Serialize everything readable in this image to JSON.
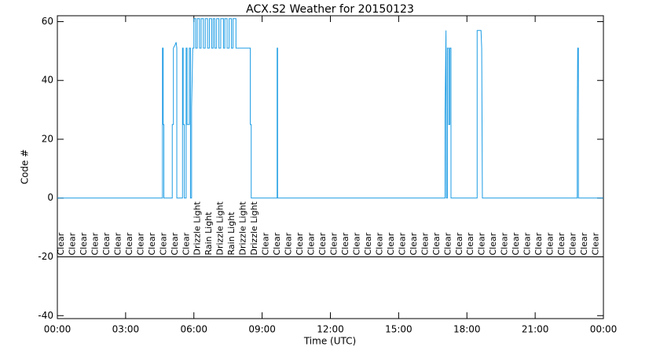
{
  "chart_data": {
    "type": "line",
    "title": "ACX.S2 Weather for 20150123",
    "x_label": "Time (UTC)",
    "y_label": "Code #",
    "xlim": [
      0,
      24
    ],
    "xticks": [
      {
        "value": 0,
        "label": "00:00"
      },
      {
        "value": 3,
        "label": "03:00"
      },
      {
        "value": 6,
        "label": "06:00"
      },
      {
        "value": 9,
        "label": "09:00"
      },
      {
        "value": 12,
        "label": "12:00"
      },
      {
        "value": 15,
        "label": "15:00"
      },
      {
        "value": 18,
        "label": "18:00"
      },
      {
        "value": 21,
        "label": "21:00"
      },
      {
        "value": 24,
        "label": "00:00"
      }
    ],
    "ylim": [
      -41,
      62
    ],
    "yticks": [
      -40,
      -20,
      0,
      20,
      40,
      60
    ],
    "hline": -20,
    "series": [
      {
        "color": "#1c9ce4",
        "x": [
          0,
          4.62,
          4.62,
          4.65,
          4.65,
          4.68,
          4.68,
          5.05,
          5.05,
          5.1,
          5.1,
          5.17,
          5.22,
          5.25,
          5.25,
          5.5,
          5.5,
          5.53,
          5.53,
          5.58,
          5.58,
          5.66,
          5.66,
          5.7,
          5.7,
          5.8,
          5.8,
          5.85,
          5.85,
          5.9,
          5.9,
          5.95,
          6.0,
          6.0,
          6.08,
          6.08,
          6.15,
          6.15,
          6.25,
          6.25,
          6.32,
          6.32,
          6.42,
          6.42,
          6.5,
          6.5,
          6.6,
          6.6,
          6.68,
          6.68,
          6.78,
          6.78,
          6.85,
          6.85,
          6.92,
          6.92,
          7.0,
          7.0,
          7.1,
          7.1,
          7.18,
          7.18,
          7.3,
          7.3,
          7.36,
          7.36,
          7.46,
          7.46,
          7.55,
          7.55,
          7.65,
          7.65,
          7.72,
          7.72,
          7.85,
          7.85,
          8.48,
          8.48,
          8.52,
          8.52,
          9.66,
          9.66,
          9.68,
          9.68,
          17.04,
          17.04,
          17.08,
          17.1,
          17.14,
          17.14,
          17.2,
          17.2,
          17.25,
          17.25,
          17.3,
          17.3,
          18.45,
          18.45,
          18.62,
          18.65,
          18.68,
          22.85,
          22.85,
          22.87,
          22.9,
          22.9,
          24
        ],
        "values": [
          0,
          0,
          51,
          51,
          25,
          25,
          0,
          0,
          25,
          25,
          51,
          52,
          53,
          51,
          0,
          0,
          51,
          51,
          25,
          25,
          0,
          0,
          51,
          51,
          25,
          25,
          51,
          51,
          0,
          0,
          31,
          51,
          51,
          61,
          61,
          51,
          51,
          61,
          61,
          51,
          51,
          61,
          61,
          51,
          51,
          61,
          61,
          51,
          51,
          61,
          61,
          51,
          51,
          61,
          61,
          51,
          51,
          61,
          61,
          51,
          51,
          61,
          61,
          51,
          51,
          61,
          61,
          51,
          51,
          61,
          61,
          51,
          51,
          61,
          61,
          51,
          51,
          25,
          25,
          0,
          0,
          51,
          51,
          0,
          0,
          28,
          57,
          0,
          0,
          51,
          51,
          25,
          25,
          51,
          51,
          0,
          0,
          57,
          57,
          51,
          0,
          0,
          25,
          51,
          51,
          0,
          0
        ]
      }
    ],
    "annotations": [
      {
        "x": 0,
        "text": "Clear"
      },
      {
        "x": 0.5,
        "text": "Clear"
      },
      {
        "x": 1,
        "text": "Clear"
      },
      {
        "x": 1.5,
        "text": "Clear"
      },
      {
        "x": 2,
        "text": "Clear"
      },
      {
        "x": 2.5,
        "text": "Clear"
      },
      {
        "x": 3,
        "text": "Clear"
      },
      {
        "x": 3.5,
        "text": "Clear"
      },
      {
        "x": 4,
        "text": "Clear"
      },
      {
        "x": 4.5,
        "text": "Clear"
      },
      {
        "x": 5,
        "text": "Clear"
      },
      {
        "x": 5.5,
        "text": "Clear"
      },
      {
        "x": 6,
        "text": "Drizzle Light"
      },
      {
        "x": 6.5,
        "text": "Rain Light"
      },
      {
        "x": 7,
        "text": "Drizzle Light"
      },
      {
        "x": 7.5,
        "text": "Rain Light"
      },
      {
        "x": 8,
        "text": "Drizzle Light"
      },
      {
        "x": 8.5,
        "text": "Drizzle Light"
      },
      {
        "x": 9,
        "text": "Clear"
      },
      {
        "x": 9.5,
        "text": "Clear"
      },
      {
        "x": 10,
        "text": "Clear"
      },
      {
        "x": 10.5,
        "text": "Clear"
      },
      {
        "x": 11,
        "text": "Clear"
      },
      {
        "x": 11.5,
        "text": "Clear"
      },
      {
        "x": 12,
        "text": "Clear"
      },
      {
        "x": 12.5,
        "text": "Clear"
      },
      {
        "x": 13,
        "text": "Clear"
      },
      {
        "x": 13.5,
        "text": "Clear"
      },
      {
        "x": 14,
        "text": "Clear"
      },
      {
        "x": 14.5,
        "text": "Clear"
      },
      {
        "x": 15,
        "text": "Clear"
      },
      {
        "x": 15.5,
        "text": "Clear"
      },
      {
        "x": 16,
        "text": "Clear"
      },
      {
        "x": 16.5,
        "text": "Clear"
      },
      {
        "x": 17,
        "text": "Clear"
      },
      {
        "x": 17.5,
        "text": "Clear"
      },
      {
        "x": 18,
        "text": "Clear"
      },
      {
        "x": 18.5,
        "text": "Clear"
      },
      {
        "x": 19,
        "text": "Clear"
      },
      {
        "x": 19.5,
        "text": "Clear"
      },
      {
        "x": 20,
        "text": "Clear"
      },
      {
        "x": 20.5,
        "text": "Clear"
      },
      {
        "x": 21,
        "text": "Clear"
      },
      {
        "x": 21.5,
        "text": "Clear"
      },
      {
        "x": 22,
        "text": "Clear"
      },
      {
        "x": 22.5,
        "text": "Clear"
      },
      {
        "x": 23,
        "text": "Clear"
      },
      {
        "x": 23.5,
        "text": "Clear"
      }
    ]
  }
}
